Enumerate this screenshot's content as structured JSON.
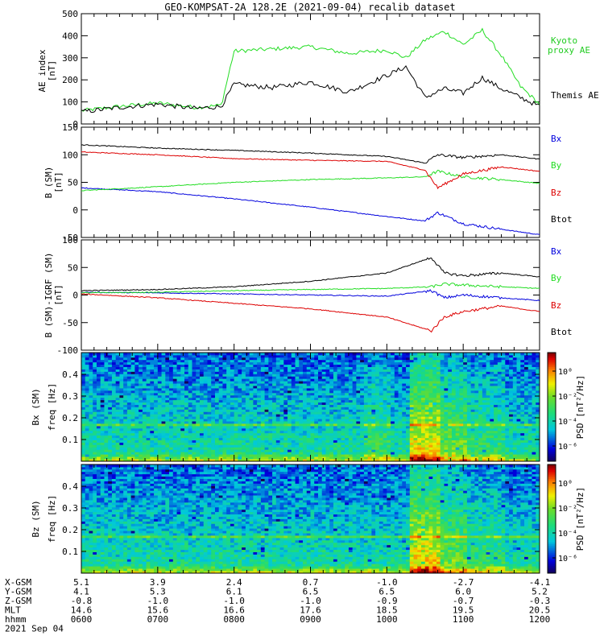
{
  "title": "GEO-KOMPSAT-2A 128.2E (2021-09-04) recalib dataset",
  "x_axis": {
    "times": [
      "0600",
      "0700",
      "0800",
      "0900",
      "1000",
      "1100",
      "1200"
    ],
    "rows": [
      {
        "label": "X-GSM",
        "values": [
          "5.1",
          "3.9",
          "2.4",
          "0.7",
          "-1.0",
          "-2.7",
          "-4.1"
        ]
      },
      {
        "label": "Y-GSM",
        "values": [
          "4.1",
          "5.3",
          "6.1",
          "6.5",
          "6.5",
          "6.0",
          "5.2"
        ]
      },
      {
        "label": "Z-GSM",
        "values": [
          "-0.8",
          "-1.0",
          "-1.0",
          "-1.0",
          "-0.9",
          "-0.7",
          "-0.3"
        ]
      },
      {
        "label": "MLT",
        "values": [
          "14.6",
          "15.6",
          "16.6",
          "17.6",
          "18.5",
          "19.5",
          "20.5"
        ]
      },
      {
        "label": "hhmm",
        "values": [
          "0600",
          "0700",
          "0800",
          "0900",
          "1000",
          "1100",
          "1200"
        ]
      }
    ],
    "date": "2021 Sep 04"
  },
  "colors": {
    "black": "#000000",
    "green": "#22dd22",
    "red": "#dd0000",
    "blue": "#0000dd",
    "kyoto": "#22cc22"
  },
  "chart_data": [
    {
      "type": "line",
      "panel": "AE index",
      "ylabel": "AE index",
      "yunit": "[nT]",
      "ylim": [
        0,
        500
      ],
      "yticks": [
        "0",
        "100",
        "200",
        "300",
        "400",
        "500"
      ],
      "x": [
        "06:00",
        "06:30",
        "07:00",
        "07:30",
        "07:50",
        "08:00",
        "08:30",
        "09:00",
        "09:30",
        "10:00",
        "10:15",
        "10:30",
        "10:45",
        "11:00",
        "11:15",
        "11:30",
        "11:45",
        "12:00"
      ],
      "series": [
        {
          "name": "Kyoto proxy AE",
          "color": "#22dd22",
          "values": [
            60,
            80,
            95,
            75,
            85,
            330,
            340,
            350,
            320,
            335,
            300,
            380,
            420,
            360,
            425,
            310,
            170,
            90
          ]
        },
        {
          "name": "Themis AE",
          "color": "#000000",
          "values": [
            55,
            75,
            90,
            70,
            80,
            180,
            165,
            190,
            145,
            220,
            260,
            120,
            160,
            140,
            210,
            160,
            120,
            80
          ]
        }
      ]
    },
    {
      "type": "line",
      "panel": "B (SM)",
      "ylabel": "B (SM)",
      "yunit": "[nT]",
      "ylim": [
        -50,
        150
      ],
      "yticks": [
        "-50",
        "0",
        "50",
        "100",
        "150"
      ],
      "x": [
        "06:00",
        "07:00",
        "08:00",
        "09:00",
        "10:00",
        "10:30",
        "10:40",
        "11:00",
        "11:30",
        "12:00"
      ],
      "series": [
        {
          "name": "Bx",
          "color": "#0000dd",
          "values": [
            40,
            33,
            20,
            5,
            -12,
            -20,
            -5,
            -25,
            -35,
            -45
          ]
        },
        {
          "name": "By",
          "color": "#22dd22",
          "values": [
            35,
            42,
            50,
            55,
            58,
            60,
            70,
            60,
            55,
            48
          ]
        },
        {
          "name": "Bz",
          "color": "#dd0000",
          "values": [
            105,
            100,
            93,
            90,
            88,
            72,
            40,
            65,
            78,
            70
          ]
        },
        {
          "name": "Btot",
          "color": "#000000",
          "values": [
            118,
            112,
            108,
            103,
            97,
            85,
            100,
            95,
            100,
            92
          ]
        }
      ],
      "legend": [
        "Bx",
        "By",
        "Bz",
        "Btot"
      ]
    },
    {
      "type": "line",
      "panel": "B (SM)-IGRF (SM)",
      "ylabel": "B (SM)-IGRF (SM)",
      "yunit": "[nT]",
      "ylim": [
        -100,
        100
      ],
      "yticks": [
        "-100",
        "-50",
        "0",
        "50",
        "100"
      ],
      "x": [
        "06:00",
        "07:00",
        "08:00",
        "09:00",
        "10:00",
        "10:35",
        "10:45",
        "11:00",
        "11:30",
        "12:00"
      ],
      "series": [
        {
          "name": "Bx",
          "color": "#0000dd",
          "values": [
            5,
            4,
            2,
            0,
            -2,
            8,
            -5,
            0,
            -5,
            -10
          ]
        },
        {
          "name": "By",
          "color": "#22dd22",
          "values": [
            4,
            5,
            8,
            10,
            12,
            15,
            20,
            18,
            15,
            12
          ]
        },
        {
          "name": "Bz",
          "color": "#dd0000",
          "values": [
            2,
            -5,
            -15,
            -25,
            -40,
            -65,
            -40,
            -30,
            -20,
            -30
          ]
        },
        {
          "name": "Btot",
          "color": "#000000",
          "values": [
            8,
            10,
            15,
            25,
            40,
            68,
            40,
            35,
            40,
            33
          ]
        }
      ],
      "legend": [
        "Bx",
        "By",
        "Bz",
        "Btot"
      ]
    },
    {
      "type": "heatmap",
      "panel": "Bx (SM)",
      "ylabel": "Bx (SM)",
      "ylabel2": "freq [Hz]",
      "yticks": [
        "0.1",
        "0.2",
        "0.3",
        "0.4"
      ],
      "ylim": [
        0,
        0.5
      ],
      "colorbar": {
        "label": "PSD [nT²/Hz]",
        "ticks": [
          "10⁰",
          "10⁻²",
          "10⁻⁴",
          "10⁻⁶"
        ]
      }
    },
    {
      "type": "heatmap",
      "panel": "Bz (SM)",
      "ylabel": "Bz (SM)",
      "ylabel2": "freq [Hz]",
      "yticks": [
        "0.1",
        "0.2",
        "0.3",
        "0.4"
      ],
      "ylim": [
        0,
        0.5
      ],
      "colorbar": {
        "label": "PSD [nT²/Hz]",
        "ticks": [
          "10⁰",
          "10⁻²",
          "10⁻⁴",
          "10⁻⁶"
        ]
      }
    }
  ],
  "legends": {
    "ae": [
      {
        "text": "Kyoto",
        "color": "#22cc22"
      },
      {
        "text": "proxy AE",
        "color": "#22cc22"
      },
      {
        "text": "Themis AE",
        "color": "#000000"
      }
    ]
  }
}
